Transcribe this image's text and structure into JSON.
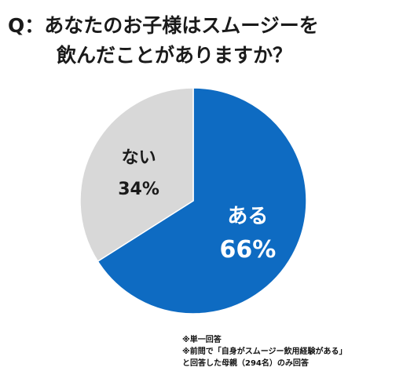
{
  "title": {
    "line1": "Q：あなたのお子様はスムージーを",
    "line2": "飲んだことがありますか？"
  },
  "chart_data": {
    "type": "pie",
    "slices": [
      {
        "label": "ある",
        "value": 66,
        "display": "66%",
        "color": "#0e6bc2",
        "text_color": "#ffffff"
      },
      {
        "label": "ない",
        "value": 34,
        "display": "34%",
        "color": "#d8d8d8",
        "text_color": "#1a1a1a"
      }
    ],
    "start_angle_deg": 0,
    "direction": "clockwise"
  },
  "notes": [
    "※単一回答",
    "※前問で「自身がスムージー飲用経験がある」",
    "と回答した母親（294名）のみ回答"
  ]
}
